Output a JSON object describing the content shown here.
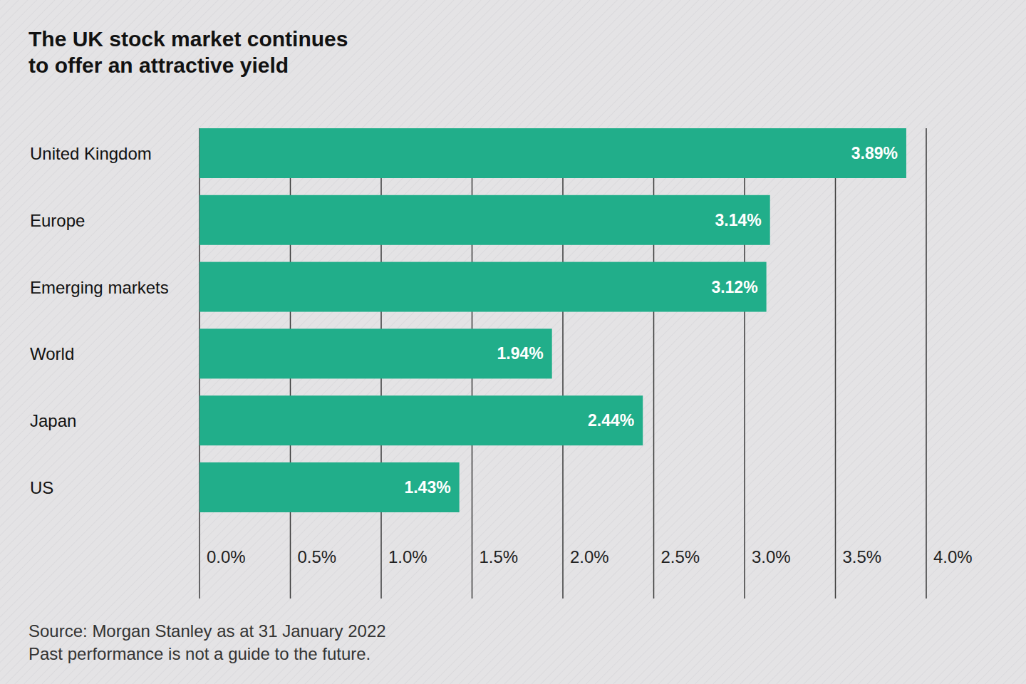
{
  "chart_data": {
    "type": "bar",
    "orientation": "horizontal",
    "title": "The UK stock market continues to offer an attractive yield",
    "categories": [
      "United Kingdom",
      "Europe",
      "Emerging markets",
      "World",
      "Japan",
      "US"
    ],
    "values": [
      3.89,
      3.14,
      3.12,
      1.94,
      2.44,
      1.43
    ],
    "value_labels": [
      "3.89%",
      "3.14%",
      "3.12%",
      "1.94%",
      "2.44%",
      "1.43%"
    ],
    "color": "#21ae8a",
    "xlim": [
      0,
      4
    ],
    "xticks": [
      {
        "value": 0,
        "label": "0.0%"
      },
      {
        "value": 0.5,
        "label": "0.5%"
      },
      {
        "value": 1,
        "label": "1.0%"
      },
      {
        "value": 1.5,
        "label": "1.5%"
      },
      {
        "value": 2,
        "label": "2.0%"
      },
      {
        "value": 2.5,
        "label": "2.5%"
      },
      {
        "value": 3,
        "label": "3.0%"
      },
      {
        "value": 3.5,
        "label": "3.5%"
      },
      {
        "value": 4,
        "label": "4.0%"
      }
    ],
    "grid": true,
    "data_labels": true,
    "annotations": [
      "Source: Morgan Stanley as at 31 January 2022",
      "Past performance is not a guide to the future."
    ]
  }
}
